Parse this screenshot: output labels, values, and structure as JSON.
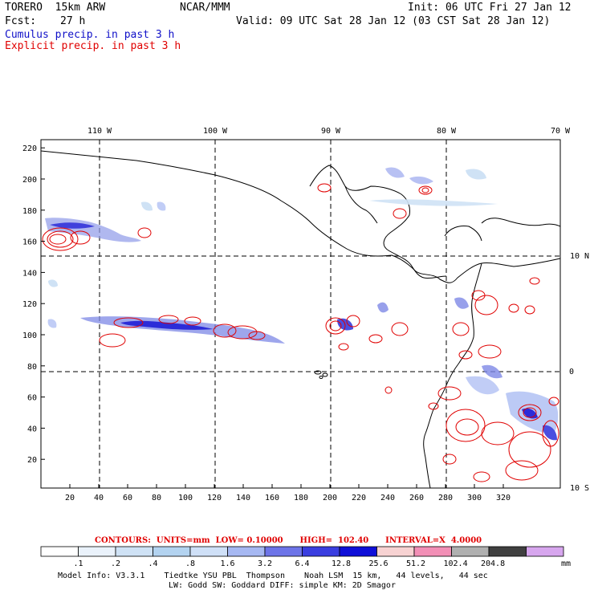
{
  "header": {
    "model": "TORERO  15km ARW",
    "org": "NCAR/MMM",
    "init": "Init: 06 UTC Fri 27 Jan 12",
    "fcst_label": "Fcst:",
    "fcst_value": "27 h",
    "valid": "Valid: 09 UTC Sat 28 Jan 12 (03 CST Sat 28 Jan 12)",
    "cumulus": "Cumulus precip. in past 3 h",
    "explicit": "Explicit precip. in past 3 h"
  },
  "map": {
    "top_lon_labels": [
      "110 W",
      "100 W",
      "90 W",
      "80 W",
      "70 W"
    ],
    "right_lat_labels": [
      "10 N",
      "0",
      "10 S"
    ],
    "x_ticks": [
      "20",
      "40",
      "60",
      "80",
      "100",
      "120",
      "140",
      "160",
      "180",
      "200",
      "220",
      "240",
      "260",
      "280",
      "300",
      "320"
    ],
    "y_ticks": [
      "20",
      "40",
      "60",
      "80",
      "100",
      "120",
      "140",
      "160",
      "180",
      "200",
      "220"
    ],
    "colors": {
      "cumulus": "#3b3bd8",
      "explicit": "#e00000",
      "coast": "#000000",
      "grid": "#000000"
    }
  },
  "contours_info": {
    "text": "CONTOURS:  UNITS=mm  LOW= 0.10000      HIGH=  102.40      INTERVAL=X  4.0000"
  },
  "colorbar": {
    "labels": [
      ".1",
      ".2",
      ".4",
      ".8",
      "1.6",
      "3.2",
      "6.4",
      "12.8",
      "25.6",
      "51.2",
      "102.4",
      "204.8"
    ],
    "unit": "mm",
    "colors": [
      "#ffffff",
      "#eaf2fb",
      "#cfe2f5",
      "#b3d3f0",
      "#cfe0f7",
      "#a6b8f2",
      "#6d74e8",
      "#3a3ee0",
      "#0f0fd8",
      "#f7d2d2",
      "#f28fb6",
      "#b0b0b0",
      "#404040",
      "#d7a6ee"
    ]
  },
  "model_info": {
    "line1": "Model Info: V3.3.1    Tiedtke YSU PBL  Thompson    Noah LSM  15 km,   44 levels,   44 sec",
    "line2": "LW: Godd SW: Goddard DIFF: simple KM: 2D Smagor"
  }
}
